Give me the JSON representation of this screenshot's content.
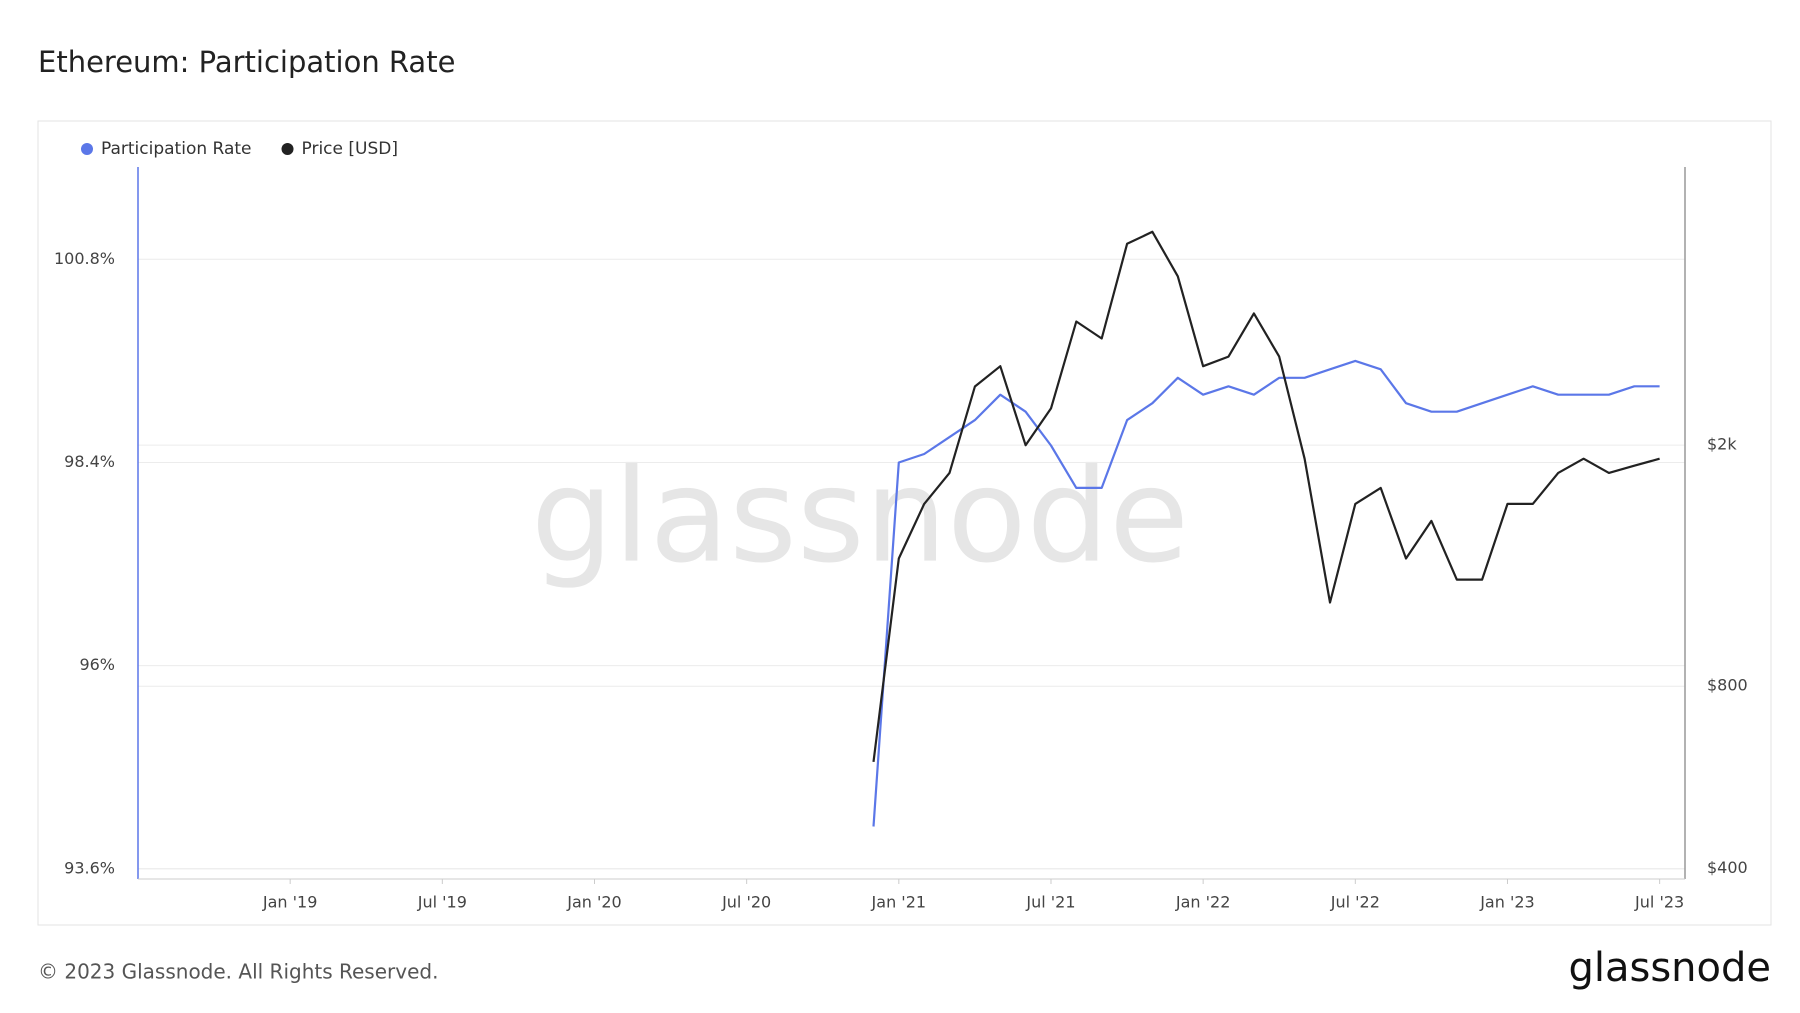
{
  "chart_data": {
    "type": "line",
    "title": "Ethereum: Participation Rate",
    "x": [
      "2020-12",
      "2021-01",
      "2021-02",
      "2021-03",
      "2021-04",
      "2021-05",
      "2021-06",
      "2021-07",
      "2021-08",
      "2021-09",
      "2021-10",
      "2021-11",
      "2021-12",
      "2022-01",
      "2022-02",
      "2022-03",
      "2022-04",
      "2022-05",
      "2022-06",
      "2022-07",
      "2022-08",
      "2022-09",
      "2022-10",
      "2022-11",
      "2022-12",
      "2023-01",
      "2023-02",
      "2023-03",
      "2023-04",
      "2023-05",
      "2023-06",
      "2023-07"
    ],
    "series": [
      {
        "name": "Participation Rate",
        "color": "#5b77e8",
        "axis": "y",
        "values": [
          94.1,
          98.4,
          98.5,
          98.7,
          98.9,
          99.2,
          99.0,
          98.6,
          98.1,
          98.1,
          98.9,
          99.1,
          99.4,
          99.2,
          99.3,
          99.2,
          99.4,
          99.4,
          99.5,
          99.6,
          99.5,
          99.1,
          99.0,
          99.0,
          99.1,
          99.2,
          99.3,
          99.2,
          99.2,
          99.2,
          99.3,
          99.3
        ]
      },
      {
        "name": "Price [USD]",
        "color": "#222222",
        "axis": "y2",
        "values": [
          600,
          1300,
          1600,
          1800,
          2500,
          2700,
          2000,
          2300,
          3200,
          3000,
          4300,
          4500,
          3800,
          2700,
          2800,
          3300,
          2800,
          1900,
          1100,
          1600,
          1700,
          1300,
          1500,
          1200,
          1200,
          1600,
          1600,
          1800,
          1900,
          1800,
          1850,
          1900
        ]
      }
    ],
    "xlim": [
      "2018-07",
      "2023-08"
    ],
    "xticks": [
      {
        "value": "2019-01",
        "label": "Jan '19"
      },
      {
        "value": "2019-07",
        "label": "Jul '19"
      },
      {
        "value": "2020-01",
        "label": "Jan '20"
      },
      {
        "value": "2020-07",
        "label": "Jul '20"
      },
      {
        "value": "2021-01",
        "label": "Jan '21"
      },
      {
        "value": "2021-07",
        "label": "Jul '21"
      },
      {
        "value": "2022-01",
        "label": "Jan '22"
      },
      {
        "value": "2022-07",
        "label": "Jul '22"
      },
      {
        "value": "2023-01",
        "label": "Jan '23"
      },
      {
        "value": "2023-07",
        "label": "Jul '23"
      }
    ],
    "ylim": [
      93.48,
      101.89
    ],
    "yticks": [
      {
        "value": 93.6,
        "label": "93.6%"
      },
      {
        "value": 96,
        "label": "96%"
      },
      {
        "value": 98.4,
        "label": "98.4%"
      },
      {
        "value": 100.8,
        "label": "100.8%"
      }
    ],
    "y2lim": [
      384.5,
      5757
    ],
    "y2ticks": [
      {
        "value": 400,
        "label": "$400"
      },
      {
        "value": 800,
        "label": "$800"
      },
      {
        "value": 2000,
        "label": "$2k"
      }
    ],
    "y2log": true,
    "grid": true,
    "legend": "top-left",
    "watermark": "glassnode",
    "footer": "© 2023 Glassnode. All Rights Reserved.",
    "brand": "glassnode"
  }
}
